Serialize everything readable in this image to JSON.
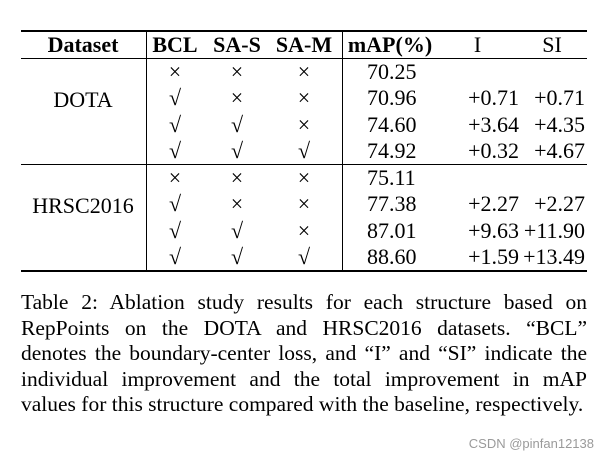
{
  "table": {
    "headers": [
      "Dataset",
      "BCL",
      "SA-S",
      "SA-M",
      "mAP(%)",
      "I",
      "SI"
    ],
    "groups": [
      {
        "dataset": "DOTA",
        "rows": [
          [
            "×",
            "×",
            "×",
            "70.25",
            "",
            ""
          ],
          [
            "√",
            "×",
            "×",
            "70.96",
            "+0.71",
            "+0.71"
          ],
          [
            "√",
            "√",
            "×",
            "74.60",
            "+3.64",
            "+4.35"
          ],
          [
            "√",
            "√",
            "√",
            "74.92",
            "+0.32",
            "+4.67"
          ]
        ]
      },
      {
        "dataset": "HRSC2016",
        "rows": [
          [
            "×",
            "×",
            "×",
            "75.11",
            "",
            ""
          ],
          [
            "√",
            "×",
            "×",
            "77.38",
            "+2.27",
            "+2.27"
          ],
          [
            "√",
            "√",
            "×",
            "87.01",
            "+9.63",
            "+11.90"
          ],
          [
            "√",
            "√",
            "√",
            "88.60",
            "+1.59",
            "+13.49"
          ]
        ]
      }
    ]
  },
  "caption": "Table 2: Ablation study results for each structure based on RepPoints on the DOTA and HRSC2016 datasets. “BCL” denotes the boundary-center loss, and “I” and “SI” indicate the individual improvement and the total improvement in mAP values for this structure compared with the baseline, respectively.",
  "watermark": "CSDN @pinfan12138"
}
